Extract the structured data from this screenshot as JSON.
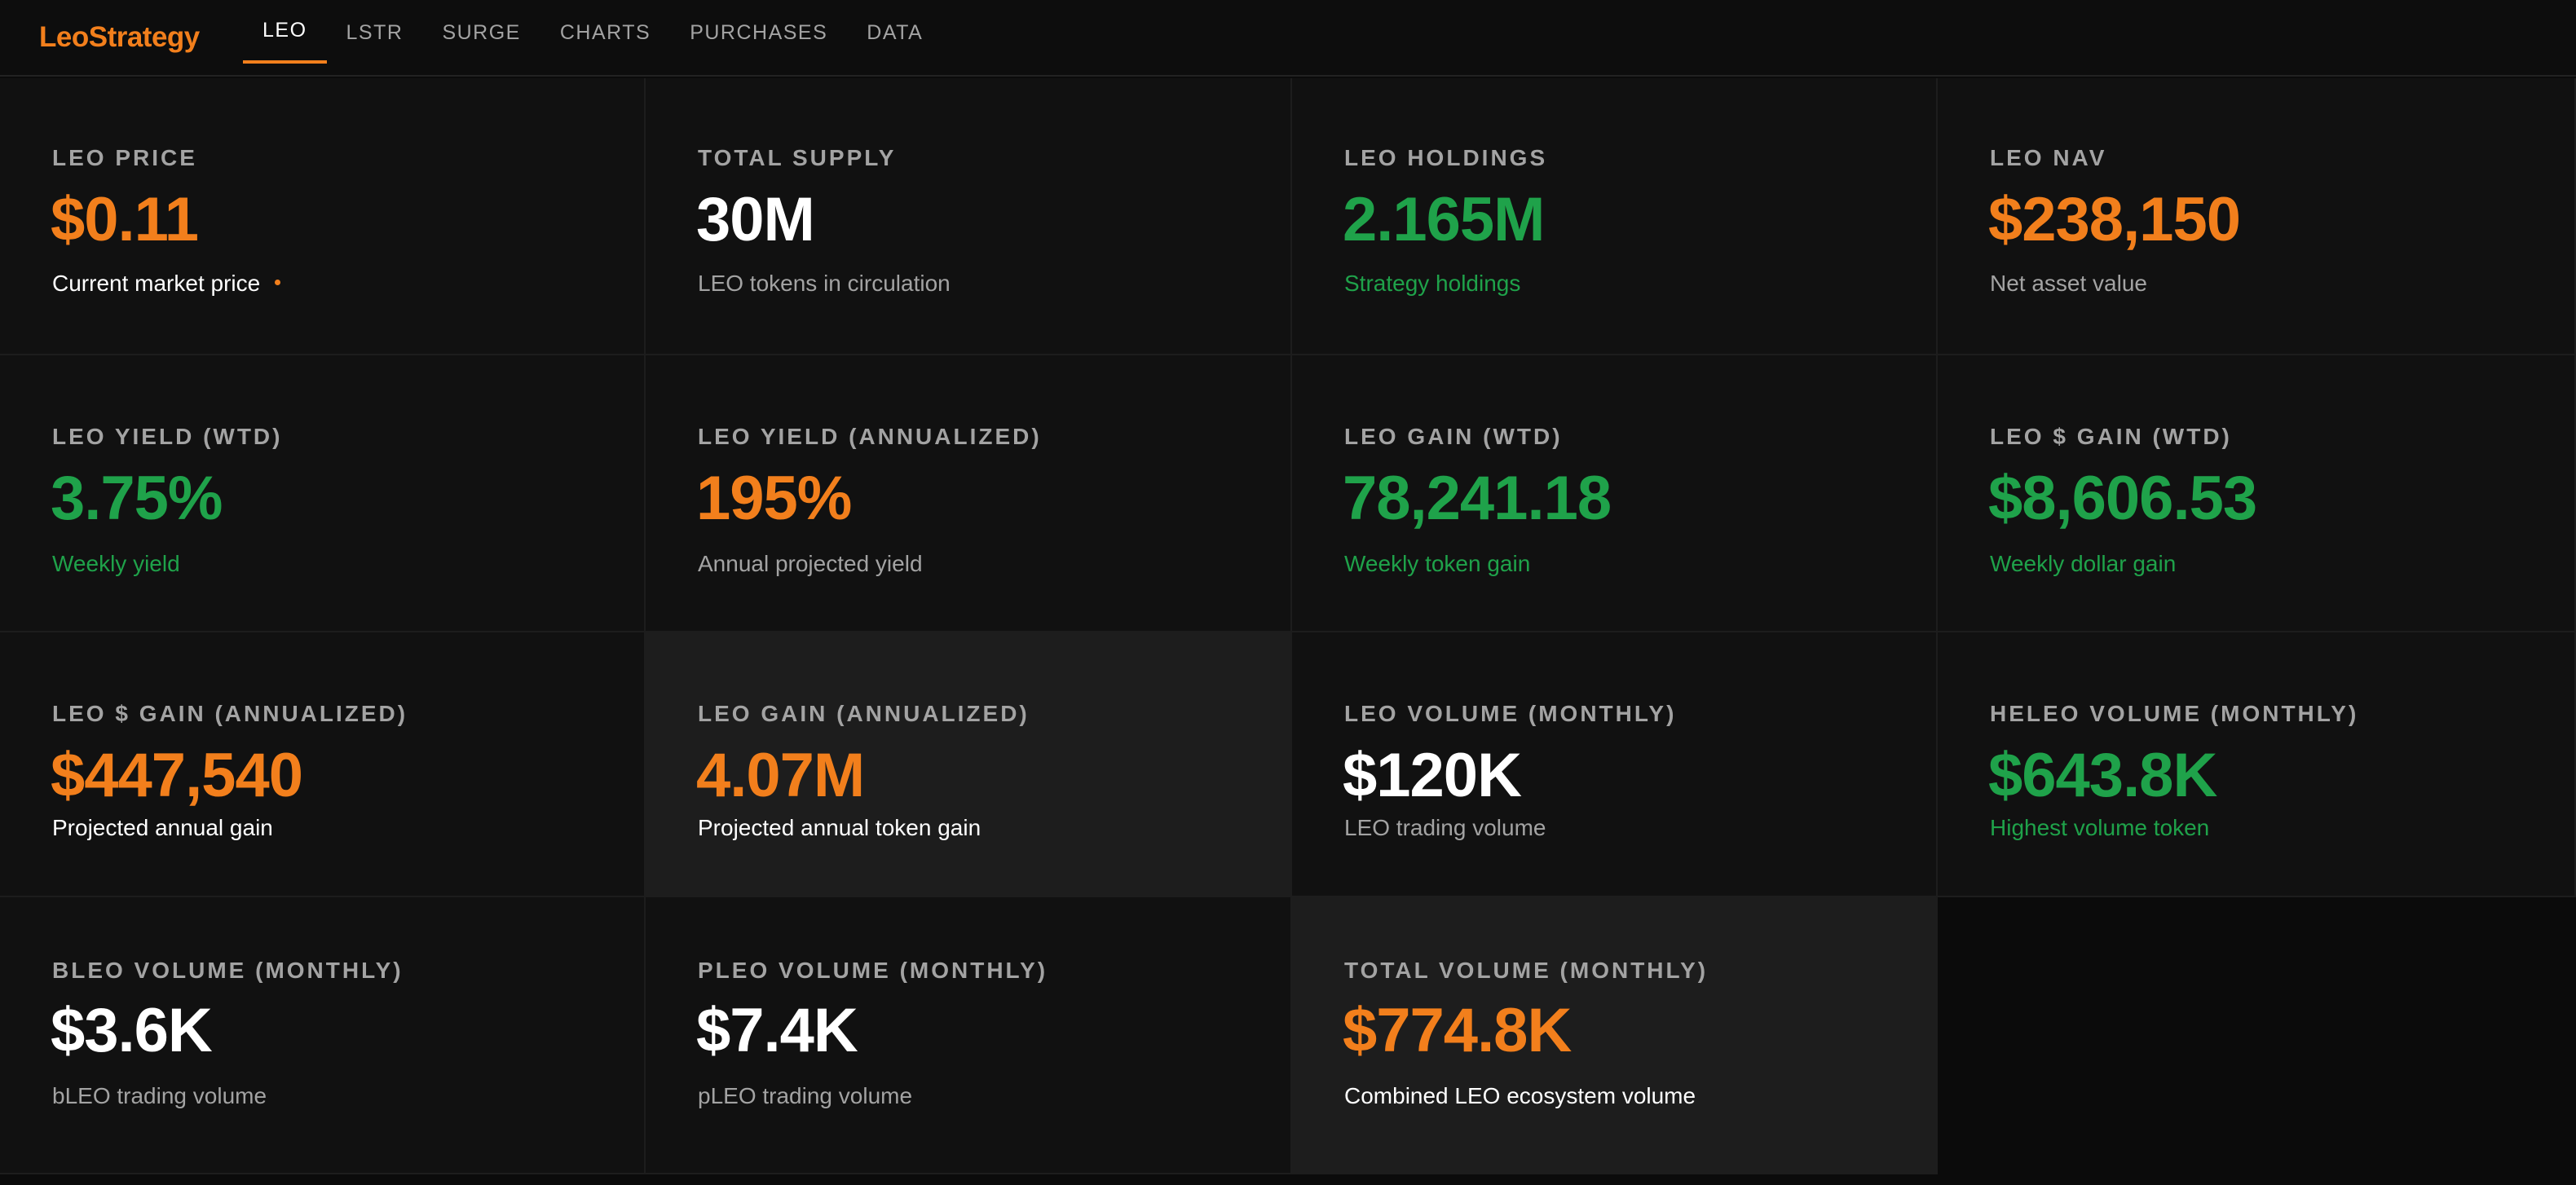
{
  "brand": "LeoStrategy",
  "nav": {
    "items": [
      {
        "label": "LEO",
        "active": true
      },
      {
        "label": "LSTR",
        "active": false
      },
      {
        "label": "SURGE",
        "active": false
      },
      {
        "label": "CHARTS",
        "active": false
      },
      {
        "label": "PURCHASES",
        "active": false
      },
      {
        "label": "DATA",
        "active": false
      }
    ]
  },
  "colors": {
    "accent_orange": "#f27f1c",
    "accent_green": "#1fa24a",
    "background": "#0b0b0b",
    "card": "#111111",
    "card_highlight": "#1d1d1d"
  },
  "cards": [
    {
      "title": "LEO PRICE",
      "value": "$0.11",
      "value_color": "orange",
      "subtitle": "Current market price",
      "subtitle_color": "white",
      "live_dot": true
    },
    {
      "title": "TOTAL SUPPLY",
      "value": "30M",
      "value_color": "white",
      "subtitle": "LEO tokens in circulation",
      "subtitle_color": "gray"
    },
    {
      "title": "LEO HOLDINGS",
      "value": "2.165M",
      "value_color": "green",
      "subtitle": "Strategy holdings",
      "subtitle_color": "green"
    },
    {
      "title": "LEO NAV",
      "value": "$238,150",
      "value_color": "orange",
      "subtitle": "Net asset value",
      "subtitle_color": "gray"
    },
    {
      "title": "LEO YIELD (WTD)",
      "value": "3.75%",
      "value_color": "green",
      "subtitle": "Weekly yield",
      "subtitle_color": "green"
    },
    {
      "title": "LEO YIELD (ANNUALIZED)",
      "value": "195%",
      "value_color": "orange",
      "subtitle": "Annual projected yield",
      "subtitle_color": "gray"
    },
    {
      "title": "LEO GAIN (WTD)",
      "value": "78,241.18",
      "value_color": "green",
      "subtitle": "Weekly token gain",
      "subtitle_color": "green"
    },
    {
      "title": "LEO $ GAIN (WTD)",
      "value": "$8,606.53",
      "value_color": "green",
      "subtitle": "Weekly dollar gain",
      "subtitle_color": "green"
    },
    {
      "title": "LEO $ GAIN (ANNUALIZED)",
      "value": "$447,540",
      "value_color": "orange",
      "subtitle": "Projected annual gain",
      "subtitle_color": "white"
    },
    {
      "title": "LEO GAIN (ANNUALIZED)",
      "value": "4.07M",
      "value_color": "orange",
      "subtitle": "Projected annual token gain",
      "subtitle_color": "white",
      "highlight": true
    },
    {
      "title": "LEO VOLUME (MONTHLY)",
      "value": "$120K",
      "value_color": "white",
      "subtitle": "LEO trading volume",
      "subtitle_color": "gray"
    },
    {
      "title": "HELEO VOLUME (MONTHLY)",
      "value": "$643.8K",
      "value_color": "green",
      "subtitle": "Highest volume token",
      "subtitle_color": "green"
    },
    {
      "title": "BLEO VOLUME (MONTHLY)",
      "value": "$3.6K",
      "value_color": "white",
      "subtitle": "bLEO trading volume",
      "subtitle_color": "gray"
    },
    {
      "title": "PLEO VOLUME (MONTHLY)",
      "value": "$7.4K",
      "value_color": "white",
      "subtitle": "pLEO trading volume",
      "subtitle_color": "gray"
    },
    {
      "title": "TOTAL VOLUME (MONTHLY)",
      "value": "$774.8K",
      "value_color": "orange",
      "subtitle": "Combined LEO ecosystem volume",
      "subtitle_color": "white",
      "highlight": true
    }
  ]
}
